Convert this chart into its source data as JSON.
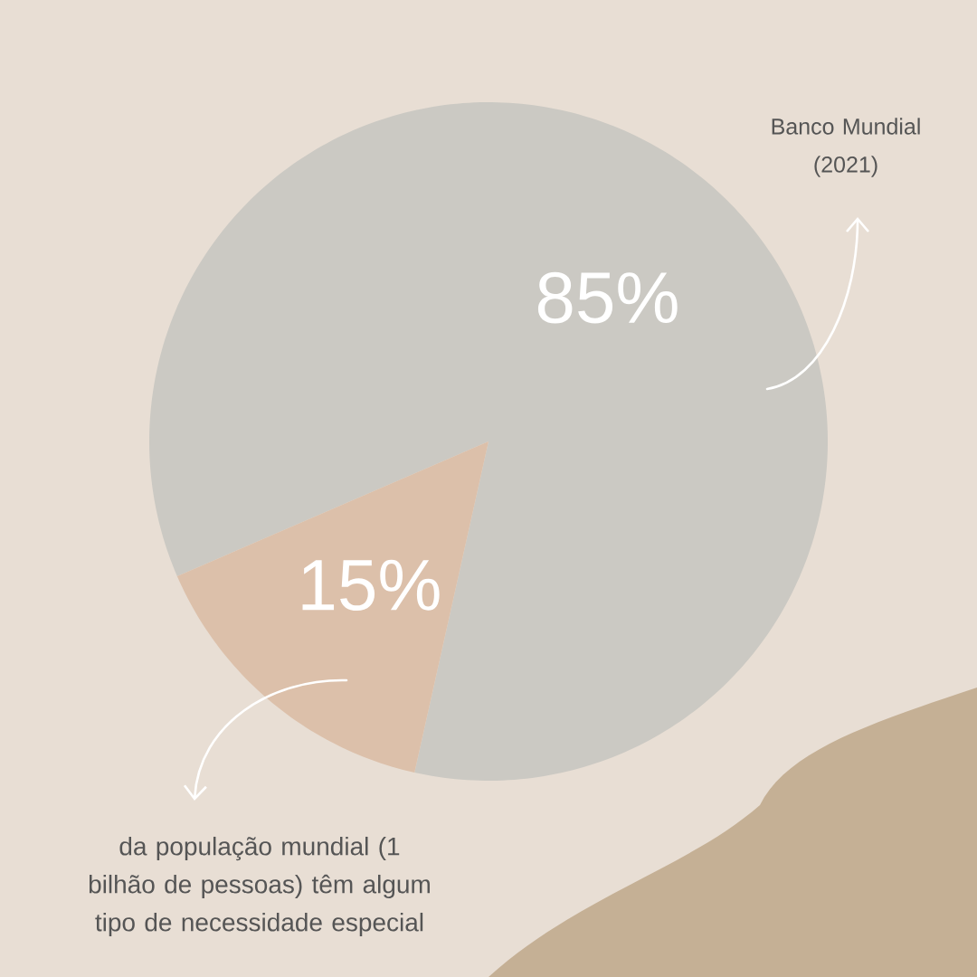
{
  "chart_data": {
    "type": "pie",
    "categories": [
      null,
      null
    ],
    "values": [
      85,
      15
    ],
    "colors": [
      "#cbc9c3",
      "#dcc0aa"
    ],
    "value_labels": [
      "85%",
      "15%"
    ],
    "annotations": [
      "Banco Mundial (2021)",
      "da população mundial (1 bilhão de pessoas) têm algum tipo de necessidade especial"
    ]
  }
}
